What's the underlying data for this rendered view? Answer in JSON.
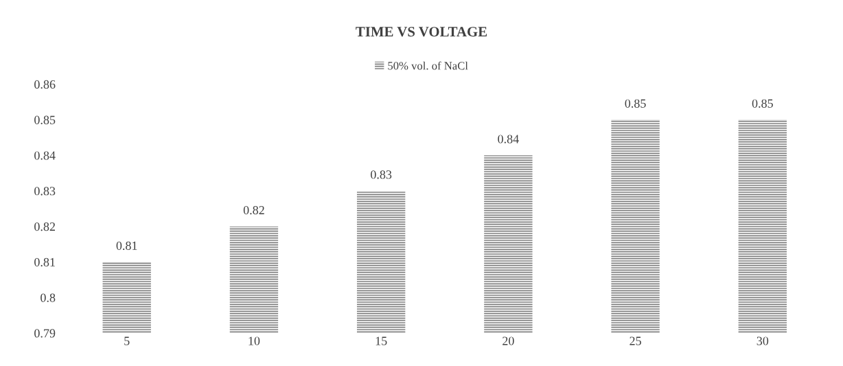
{
  "chart_data": {
    "type": "bar",
    "title": "TIME VS VOLTAGE",
    "categories": [
      "5",
      "10",
      "15",
      "20",
      "25",
      "30"
    ],
    "series": [
      {
        "name": "50% vol. of NaCl",
        "color": "#7f7f7f",
        "values": [
          0.81,
          0.82,
          0.83,
          0.84,
          0.85,
          0.85
        ]
      }
    ],
    "ylim": [
      0.79,
      0.86
    ],
    "yticks": [
      0.79,
      0.8,
      0.81,
      0.82,
      0.83,
      0.84,
      0.85,
      0.86
    ],
    "data_labels": true,
    "grid": false,
    "legend": "top"
  }
}
